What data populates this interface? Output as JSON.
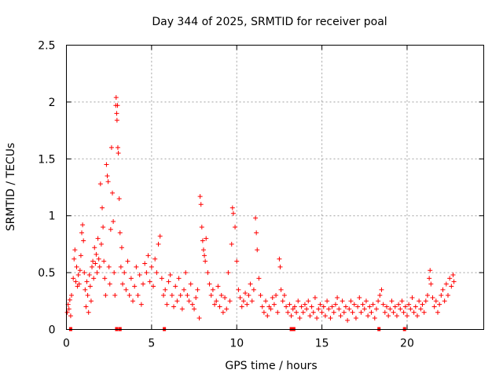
{
  "chart_data": {
    "type": "scatter",
    "title": "Day 344 of 2025, SRMTID for receiver poal",
    "xlabel": "GPS time / hours",
    "ylabel": "SRMTID / TECUs",
    "xlim": [
      0,
      24.5
    ],
    "ylim": [
      0,
      2.5
    ],
    "xticks": [
      0,
      5,
      10,
      15,
      20
    ],
    "yticks": [
      0,
      0.5,
      1,
      1.5,
      2,
      2.5
    ],
    "xtick_labels": [
      "0",
      "5",
      "10",
      "15",
      "20"
    ],
    "ytick_labels": [
      "0",
      "0.5",
      "1",
      "1.5",
      "2",
      "2.5"
    ],
    "grid": true,
    "marker": "+",
    "color": "#ff0000",
    "series": [
      {
        "name": "SRMTID",
        "points": [
          [
            0.05,
            0.15
          ],
          [
            0.1,
            0.22
          ],
          [
            0.15,
            0.18
          ],
          [
            0.2,
            0.26
          ],
          [
            0.25,
            0.12
          ],
          [
            0.3,
            0.3
          ],
          [
            0.4,
            0.45
          ],
          [
            0.45,
            0.62
          ],
          [
            0.5,
            0.7
          ],
          [
            0.55,
            0.42
          ],
          [
            0.6,
            0.55
          ],
          [
            0.65,
            0.38
          ],
          [
            0.7,
            0.48
          ],
          [
            0.75,
            0.4
          ],
          [
            0.8,
            0.52
          ],
          [
            0.85,
            0.65
          ],
          [
            0.9,
            0.85
          ],
          [
            0.95,
            0.92
          ],
          [
            1.0,
            0.78
          ],
          [
            1.05,
            0.5
          ],
          [
            1.1,
            0.35
          ],
          [
            1.15,
            0.2
          ],
          [
            1.2,
            0.42
          ],
          [
            1.25,
            0.3
          ],
          [
            1.3,
            0.15
          ],
          [
            1.35,
            0.48
          ],
          [
            1.4,
            0.38
          ],
          [
            1.45,
            0.25
          ],
          [
            1.5,
            0.55
          ],
          [
            1.55,
            0.6
          ],
          [
            1.6,
            0.45
          ],
          [
            1.65,
            0.72
          ],
          [
            1.7,
            0.58
          ],
          [
            1.75,
            0.66
          ],
          [
            1.8,
            0.5
          ],
          [
            1.85,
            0.8
          ],
          [
            1.9,
            0.62
          ],
          [
            1.95,
            0.55
          ],
          [
            2.0,
            1.28
          ],
          [
            2.05,
            0.75
          ],
          [
            2.1,
            1.07
          ],
          [
            2.15,
            0.9
          ],
          [
            2.2,
            0.6
          ],
          [
            2.25,
            0.45
          ],
          [
            2.3,
            0.3
          ],
          [
            2.35,
            1.45
          ],
          [
            2.4,
            1.35
          ],
          [
            2.45,
            1.3
          ],
          [
            2.5,
            0.55
          ],
          [
            2.55,
            0.4
          ],
          [
            2.6,
            0.88
          ],
          [
            2.65,
            1.6
          ],
          [
            2.7,
            1.2
          ],
          [
            2.75,
            0.95
          ],
          [
            2.8,
            0.5
          ],
          [
            2.85,
            0.3
          ],
          [
            2.9,
            1.97
          ],
          [
            2.92,
            2.04
          ],
          [
            2.95,
            1.9
          ],
          [
            2.97,
            1.84
          ],
          [
            3.0,
            1.97
          ],
          [
            3.02,
            1.6
          ],
          [
            3.05,
            1.55
          ],
          [
            3.1,
            1.15
          ],
          [
            3.15,
            0.85
          ],
          [
            3.2,
            0.55
          ],
          [
            3.25,
            0.72
          ],
          [
            3.3,
            0.4
          ],
          [
            3.4,
            0.5
          ],
          [
            3.5,
            0.35
          ],
          [
            3.6,
            0.6
          ],
          [
            3.7,
            0.3
          ],
          [
            3.8,
            0.45
          ],
          [
            3.9,
            0.25
          ],
          [
            4.0,
            0.38
          ],
          [
            4.1,
            0.55
          ],
          [
            4.2,
            0.3
          ],
          [
            4.3,
            0.48
          ],
          [
            4.4,
            0.22
          ],
          [
            4.5,
            0.4
          ],
          [
            4.6,
            0.58
          ],
          [
            4.7,
            0.5
          ],
          [
            4.8,
            0.65
          ],
          [
            4.9,
            0.42
          ],
          [
            5.0,
            0.55
          ],
          [
            5.1,
            0.38
          ],
          [
            5.2,
            0.62
          ],
          [
            5.3,
            0.5
          ],
          [
            5.4,
            0.75
          ],
          [
            5.5,
            0.82
          ],
          [
            5.6,
            0.45
          ],
          [
            5.7,
            0.3
          ],
          [
            5.8,
            0.35
          ],
          [
            5.9,
            0.22
          ],
          [
            6.0,
            0.42
          ],
          [
            6.1,
            0.48
          ],
          [
            6.2,
            0.3
          ],
          [
            6.3,
            0.2
          ],
          [
            6.4,
            0.38
          ],
          [
            6.5,
            0.25
          ],
          [
            6.6,
            0.45
          ],
          [
            6.7,
            0.3
          ],
          [
            6.8,
            0.18
          ],
          [
            6.9,
            0.35
          ],
          [
            7.0,
            0.5
          ],
          [
            7.1,
            0.3
          ],
          [
            7.2,
            0.25
          ],
          [
            7.3,
            0.4
          ],
          [
            7.4,
            0.22
          ],
          [
            7.5,
            0.18
          ],
          [
            7.6,
            0.28
          ],
          [
            7.7,
            0.35
          ],
          [
            7.8,
            0.1
          ],
          [
            7.85,
            1.17
          ],
          [
            7.9,
            1.1
          ],
          [
            7.95,
            0.9
          ],
          [
            8.0,
            0.78
          ],
          [
            8.05,
            0.7
          ],
          [
            8.1,
            0.65
          ],
          [
            8.15,
            0.6
          ],
          [
            8.2,
            0.8
          ],
          [
            8.3,
            0.5
          ],
          [
            8.4,
            0.4
          ],
          [
            8.5,
            0.3
          ],
          [
            8.6,
            0.35
          ],
          [
            8.7,
            0.22
          ],
          [
            8.8,
            0.25
          ],
          [
            8.9,
            0.38
          ],
          [
            9.0,
            0.2
          ],
          [
            9.1,
            0.3
          ],
          [
            9.2,
            0.15
          ],
          [
            9.3,
            0.28
          ],
          [
            9.4,
            0.18
          ],
          [
            9.5,
            0.5
          ],
          [
            9.6,
            0.25
          ],
          [
            9.7,
            0.75
          ],
          [
            9.75,
            1.07
          ],
          [
            9.8,
            1.02
          ],
          [
            9.9,
            0.9
          ],
          [
            10.0,
            0.6
          ],
          [
            10.1,
            0.35
          ],
          [
            10.2,
            0.28
          ],
          [
            10.3,
            0.2
          ],
          [
            10.4,
            0.25
          ],
          [
            10.5,
            0.32
          ],
          [
            10.6,
            0.22
          ],
          [
            10.7,
            0.3
          ],
          [
            10.8,
            0.4
          ],
          [
            10.9,
            0.25
          ],
          [
            11.0,
            0.35
          ],
          [
            11.1,
            0.98
          ],
          [
            11.15,
            0.85
          ],
          [
            11.2,
            0.7
          ],
          [
            11.3,
            0.45
          ],
          [
            11.4,
            0.3
          ],
          [
            11.5,
            0.2
          ],
          [
            11.6,
            0.15
          ],
          [
            11.7,
            0.25
          ],
          [
            11.8,
            0.12
          ],
          [
            11.9,
            0.2
          ],
          [
            12.0,
            0.18
          ],
          [
            12.1,
            0.28
          ],
          [
            12.2,
            0.22
          ],
          [
            12.3,
            0.3
          ],
          [
            12.4,
            0.15
          ],
          [
            12.5,
            0.62
          ],
          [
            12.55,
            0.55
          ],
          [
            12.6,
            0.35
          ],
          [
            12.7,
            0.25
          ],
          [
            12.8,
            0.3
          ],
          [
            12.9,
            0.2
          ],
          [
            13.0,
            0.15
          ],
          [
            13.1,
            0.22
          ],
          [
            13.2,
            0.12
          ],
          [
            13.3,
            0.18
          ],
          [
            13.4,
            0.2
          ],
          [
            13.5,
            0.15
          ],
          [
            13.6,
            0.25
          ],
          [
            13.7,
            0.1
          ],
          [
            13.8,
            0.2
          ],
          [
            13.9,
            0.15
          ],
          [
            14.0,
            0.22
          ],
          [
            14.1,
            0.18
          ],
          [
            14.2,
            0.25
          ],
          [
            14.3,
            0.12
          ],
          [
            14.4,
            0.2
          ],
          [
            14.5,
            0.15
          ],
          [
            14.6,
            0.28
          ],
          [
            14.7,
            0.1
          ],
          [
            14.8,
            0.18
          ],
          [
            14.9,
            0.22
          ],
          [
            15.0,
            0.15
          ],
          [
            15.1,
            0.2
          ],
          [
            15.2,
            0.12
          ],
          [
            15.3,
            0.25
          ],
          [
            15.4,
            0.18
          ],
          [
            15.5,
            0.1
          ],
          [
            15.6,
            0.2
          ],
          [
            15.7,
            0.15
          ],
          [
            15.8,
            0.22
          ],
          [
            15.9,
            0.28
          ],
          [
            16.0,
            0.18
          ],
          [
            16.1,
            0.12
          ],
          [
            16.2,
            0.25
          ],
          [
            16.3,
            0.15
          ],
          [
            16.4,
            0.2
          ],
          [
            16.5,
            0.08
          ],
          [
            16.6,
            0.18
          ],
          [
            16.7,
            0.25
          ],
          [
            16.8,
            0.15
          ],
          [
            16.9,
            0.22
          ],
          [
            17.0,
            0.1
          ],
          [
            17.1,
            0.2
          ],
          [
            17.2,
            0.28
          ],
          [
            17.3,
            0.15
          ],
          [
            17.4,
            0.22
          ],
          [
            17.5,
            0.18
          ],
          [
            17.6,
            0.25
          ],
          [
            17.7,
            0.12
          ],
          [
            17.8,
            0.2
          ],
          [
            17.9,
            0.15
          ],
          [
            18.0,
            0.22
          ],
          [
            18.1,
            0.1
          ],
          [
            18.2,
            0.18
          ],
          [
            18.3,
            0.25
          ],
          [
            18.4,
            0.3
          ],
          [
            18.5,
            0.35
          ],
          [
            18.6,
            0.22
          ],
          [
            18.7,
            0.15
          ],
          [
            18.8,
            0.2
          ],
          [
            18.9,
            0.12
          ],
          [
            19.0,
            0.18
          ],
          [
            19.1,
            0.25
          ],
          [
            19.2,
            0.15
          ],
          [
            19.3,
            0.2
          ],
          [
            19.4,
            0.12
          ],
          [
            19.5,
            0.22
          ],
          [
            19.6,
            0.18
          ],
          [
            19.7,
            0.25
          ],
          [
            19.8,
            0.15
          ],
          [
            19.9,
            0.2
          ],
          [
            20.0,
            0.12
          ],
          [
            20.1,
            0.22
          ],
          [
            20.2,
            0.18
          ],
          [
            20.3,
            0.28
          ],
          [
            20.4,
            0.15
          ],
          [
            20.5,
            0.2
          ],
          [
            20.6,
            0.12
          ],
          [
            20.7,
            0.25
          ],
          [
            20.8,
            0.18
          ],
          [
            20.9,
            0.22
          ],
          [
            21.0,
            0.15
          ],
          [
            21.1,
            0.25
          ],
          [
            21.2,
            0.3
          ],
          [
            21.3,
            0.45
          ],
          [
            21.35,
            0.52
          ],
          [
            21.4,
            0.4
          ],
          [
            21.5,
            0.28
          ],
          [
            21.6,
            0.2
          ],
          [
            21.7,
            0.25
          ],
          [
            21.8,
            0.15
          ],
          [
            21.9,
            0.22
          ],
          [
            22.0,
            0.3
          ],
          [
            22.1,
            0.35
          ],
          [
            22.2,
            0.25
          ],
          [
            22.3,
            0.4
          ],
          [
            22.4,
            0.3
          ],
          [
            22.5,
            0.45
          ],
          [
            22.6,
            0.38
          ],
          [
            22.7,
            0.48
          ],
          [
            22.75,
            0.42
          ]
        ]
      }
    ],
    "baseline_markers_x": [
      0.25,
      2.95,
      3.15,
      5.75,
      13.2,
      13.35,
      18.35,
      19.85
    ]
  }
}
